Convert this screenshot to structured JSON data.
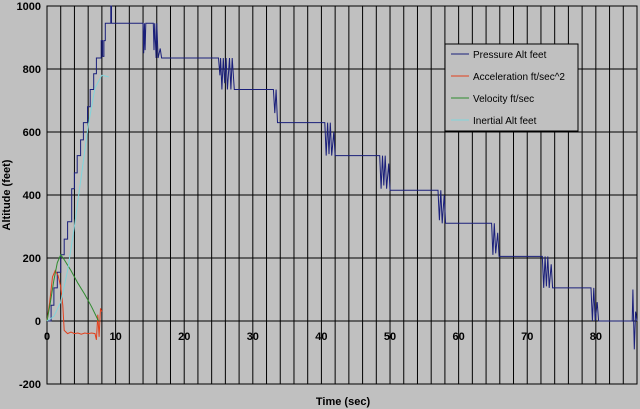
{
  "chart_data": {
    "type": "line",
    "title": "",
    "xlabel": "Time (sec)",
    "ylabel": "Altitude (feet)",
    "xlim": [
      0,
      86
    ],
    "ylim": [
      -200,
      1000
    ],
    "x_ticks": [
      0,
      10,
      20,
      30,
      40,
      50,
      60,
      70,
      80
    ],
    "y_ticks": [
      -200,
      0,
      200,
      400,
      600,
      800,
      1000
    ],
    "grid": true,
    "legend_position": "right",
    "series": [
      {
        "name": "Pressure Alt feet",
        "color": "#1a1f7a",
        "points": [
          [
            0,
            0
          ],
          [
            0.6,
            0
          ],
          [
            0.6,
            50
          ],
          [
            1.0,
            50
          ],
          [
            1.0,
            105
          ],
          [
            1.5,
            105
          ],
          [
            1.5,
            155
          ],
          [
            2.0,
            155
          ],
          [
            2.0,
            210
          ],
          [
            2.5,
            210
          ],
          [
            2.5,
            260
          ],
          [
            3.0,
            260
          ],
          [
            3.0,
            315
          ],
          [
            3.6,
            315
          ],
          [
            3.6,
            420
          ],
          [
            4.0,
            420
          ],
          [
            4.0,
            470
          ],
          [
            4.4,
            470
          ],
          [
            4.4,
            525
          ],
          [
            4.9,
            525
          ],
          [
            4.9,
            575
          ],
          [
            5.3,
            575
          ],
          [
            5.3,
            630
          ],
          [
            5.9,
            630
          ],
          [
            5.9,
            680
          ],
          [
            6.3,
            680
          ],
          [
            6.3,
            735
          ],
          [
            6.8,
            735
          ],
          [
            6.8,
            785
          ],
          [
            7.2,
            785
          ],
          [
            7.2,
            835
          ],
          [
            7.9,
            835
          ],
          [
            7.9,
            890
          ],
          [
            8.1,
            890
          ],
          [
            8.1,
            840
          ],
          [
            8.3,
            840
          ],
          [
            8.3,
            890
          ],
          [
            8.5,
            890
          ],
          [
            8.5,
            945
          ],
          [
            9.3,
            945
          ],
          [
            9.3,
            1000
          ],
          [
            9.4,
            1000
          ],
          [
            9.4,
            945
          ],
          [
            14.0,
            945
          ],
          [
            14.1,
            850
          ],
          [
            14.2,
            945
          ],
          [
            14.3,
            860
          ],
          [
            14.4,
            945
          ],
          [
            15.5,
            945
          ],
          [
            15.6,
            860
          ],
          [
            15.7,
            945
          ],
          [
            15.9,
            835
          ],
          [
            16.0,
            945
          ],
          [
            16.2,
            835
          ],
          [
            16.5,
            865
          ],
          [
            16.7,
            835
          ],
          [
            25.0,
            835
          ],
          [
            25.2,
            780
          ],
          [
            25.3,
            835
          ],
          [
            25.5,
            735
          ],
          [
            25.7,
            835
          ],
          [
            25.9,
            755
          ],
          [
            26.1,
            835
          ],
          [
            26.3,
            735
          ],
          [
            26.6,
            835
          ],
          [
            26.8,
            735
          ],
          [
            27.0,
            835
          ],
          [
            27.3,
            735
          ],
          [
            33.0,
            735
          ],
          [
            33.2,
            660
          ],
          [
            33.4,
            735
          ],
          [
            33.6,
            630
          ],
          [
            40.5,
            630
          ],
          [
            40.7,
            525
          ],
          [
            40.9,
            630
          ],
          [
            41.1,
            530
          ],
          [
            41.3,
            630
          ],
          [
            41.5,
            525
          ],
          [
            41.8,
            600
          ],
          [
            42.0,
            525
          ],
          [
            48.5,
            525
          ],
          [
            48.7,
            420
          ],
          [
            48.9,
            525
          ],
          [
            49.1,
            430
          ],
          [
            49.3,
            525
          ],
          [
            49.5,
            420
          ],
          [
            49.8,
            500
          ],
          [
            50.0,
            415
          ],
          [
            57.0,
            415
          ],
          [
            57.2,
            320
          ],
          [
            57.4,
            415
          ],
          [
            57.6,
            310
          ],
          [
            57.9,
            400
          ],
          [
            58.1,
            310
          ],
          [
            64.8,
            310
          ],
          [
            65.0,
            210
          ],
          [
            65.2,
            310
          ],
          [
            65.4,
            215
          ],
          [
            65.7,
            280
          ],
          [
            65.9,
            205
          ],
          [
            72.2,
            205
          ],
          [
            72.4,
            105
          ],
          [
            72.6,
            205
          ],
          [
            72.8,
            110
          ],
          [
            73.0,
            205
          ],
          [
            73.2,
            105
          ],
          [
            73.5,
            180
          ],
          [
            73.7,
            105
          ],
          [
            79.3,
            105
          ],
          [
            79.5,
            0
          ],
          [
            79.7,
            105
          ],
          [
            79.9,
            0
          ],
          [
            80.2,
            60
          ],
          [
            80.4,
            0
          ],
          [
            85.3,
            0
          ],
          [
            85.4,
            100
          ],
          [
            85.6,
            -90
          ],
          [
            85.8,
            30
          ],
          [
            86.0,
            0
          ]
        ]
      },
      {
        "name": "Acceleration ft/sec^2",
        "color": "#e2401c",
        "points": [
          [
            0,
            0
          ],
          [
            0.4,
            60
          ],
          [
            0.8,
            140
          ],
          [
            1.2,
            160
          ],
          [
            1.6,
            145
          ],
          [
            2.0,
            110
          ],
          [
            2.3,
            50
          ],
          [
            2.5,
            -30
          ],
          [
            3.0,
            -40
          ],
          [
            3.5,
            -35
          ],
          [
            4.0,
            -40
          ],
          [
            4.5,
            -38
          ],
          [
            5.0,
            -42
          ],
          [
            5.5,
            -38
          ],
          [
            6.0,
            -40
          ],
          [
            6.5,
            -38
          ],
          [
            7.0,
            -40
          ],
          [
            7.2,
            -60
          ],
          [
            7.4,
            20
          ],
          [
            7.6,
            -50
          ],
          [
            7.8,
            40
          ],
          [
            8.0,
            30
          ]
        ]
      },
      {
        "name": "Velocity ft/sec",
        "color": "#2e8b2e",
        "points": [
          [
            0,
            0
          ],
          [
            0.5,
            60
          ],
          [
            1.0,
            130
          ],
          [
            1.5,
            185
          ],
          [
            2.0,
            210
          ],
          [
            2.5,
            195
          ],
          [
            3.5,
            160
          ],
          [
            4.5,
            120
          ],
          [
            5.5,
            85
          ],
          [
            6.5,
            45
          ],
          [
            7.5,
            0
          ]
        ]
      },
      {
        "name": "Inertial Alt feet",
        "color": "#7fd6dc",
        "points": [
          [
            0,
            0
          ],
          [
            1,
            15
          ],
          [
            2,
            60
          ],
          [
            3,
            160
          ],
          [
            4,
            300
          ],
          [
            5,
            460
          ],
          [
            6,
            620
          ],
          [
            7,
            740
          ],
          [
            8,
            780
          ],
          [
            9,
            775
          ]
        ]
      }
    ]
  }
}
